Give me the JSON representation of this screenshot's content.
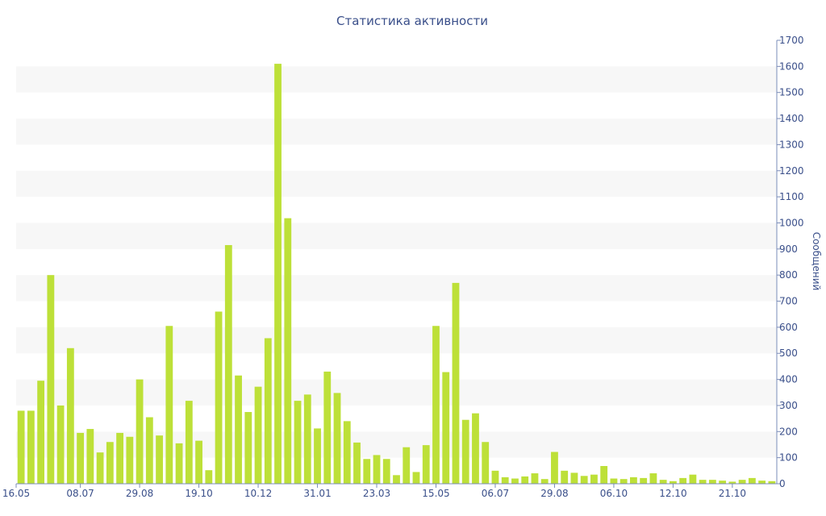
{
  "chart_data": {
    "type": "bar",
    "title": "Статистика активности",
    "ylabel": "Сообщений",
    "xlabel": "",
    "ylim": [
      0,
      1700
    ],
    "y_ticks": [
      0,
      100,
      200,
      300,
      400,
      500,
      600,
      700,
      800,
      900,
      1000,
      1100,
      1200,
      1300,
      1400,
      1500,
      1600,
      1700
    ],
    "y_axis_side": "right",
    "bar_color": "#bde038",
    "band_color": "#f7f7f7",
    "x_tick_labels": [
      {
        "label": "16.05",
        "index": -0.5
      },
      {
        "label": "08.07",
        "index": 6
      },
      {
        "label": "29.08",
        "index": 12
      },
      {
        "label": "19.10",
        "index": 18
      },
      {
        "label": "10.12",
        "index": 24
      },
      {
        "label": "31.01",
        "index": 30
      },
      {
        "label": "23.03",
        "index": 36
      },
      {
        "label": "15.05",
        "index": 42
      },
      {
        "label": "06.07",
        "index": 48
      },
      {
        "label": "29.08",
        "index": 54
      },
      {
        "label": "06.10",
        "index": 60
      },
      {
        "label": "12.10",
        "index": 66
      },
      {
        "label": "21.10",
        "index": 72
      }
    ],
    "values": [
      280,
      280,
      395,
      800,
      300,
      520,
      195,
      210,
      120,
      160,
      195,
      180,
      400,
      255,
      185,
      605,
      155,
      318,
      165,
      52,
      660,
      915,
      415,
      275,
      372,
      558,
      1610,
      1018,
      318,
      342,
      212,
      430,
      348,
      240,
      158,
      95,
      110,
      95,
      33,
      140,
      45,
      148,
      605,
      428,
      770,
      245,
      270,
      160,
      50,
      25,
      20,
      28,
      40,
      18,
      122,
      50,
      42,
      30,
      35,
      68,
      20,
      18,
      25,
      22,
      40,
      15,
      10,
      22,
      35,
      15,
      15,
      12,
      8,
      15,
      22,
      12,
      10
    ]
  }
}
